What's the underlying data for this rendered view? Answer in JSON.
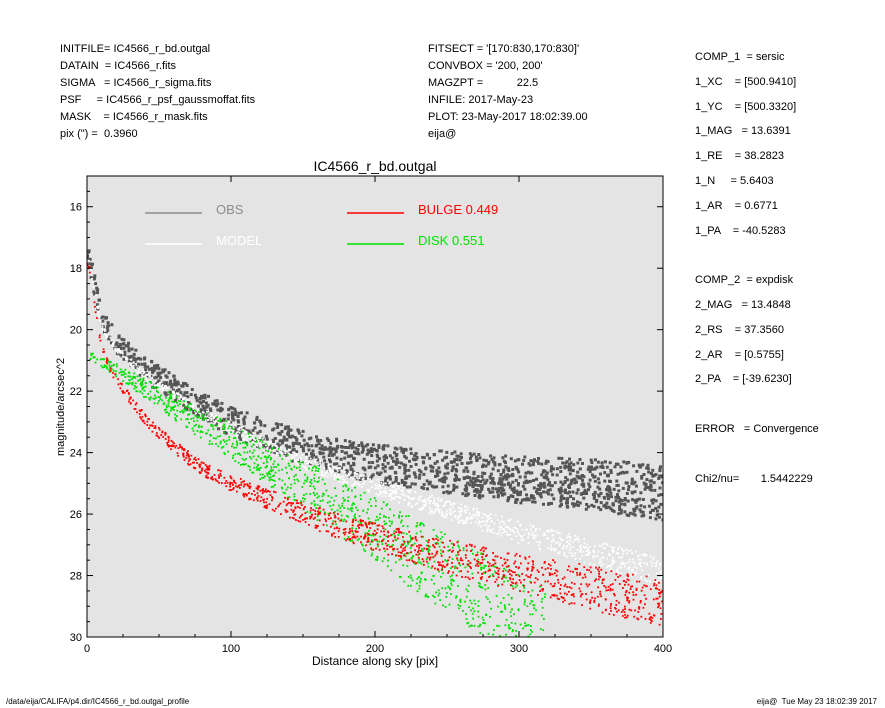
{
  "header_left": [
    "INITFILE= IC4566_r_bd.outgal",
    "DATAIN  = IC4566_r.fits",
    "SIGMA   = IC4566_r_sigma.fits",
    "PSF     = IC4566_r_psf_gaussmoffat.fits",
    "MASK    = IC4566_r_mask.fits",
    "pix (\") =  0.3960"
  ],
  "header_mid": [
    "FITSECT = '[170:830,170:830]'",
    "CONVBOX = '200, 200'",
    "MAGZPT =           22.5",
    "INFILE: 2017-May-23",
    "PLOT: 23-May-2017 18:02:39.00",
    "eija@"
  ],
  "header_right": [
    "COMP_1  = sersic",
    "1_XC    = [500.9410]",
    "1_YC    = [500.3320]",
    "1_MAG   = 13.6391",
    "1_RE    = 38.2823",
    "1_N     = 5.6403",
    "1_AR    = 0.6771",
    "1_PA    = -40.5283",
    "",
    "COMP_2  = expdisk",
    "2_MAG   = 13.4848",
    "2_RS    = 37.3560",
    "2_AR    = [0.5755]",
    "2_PA    = [-39.6230]",
    "",
    "ERROR   = Convergence",
    "",
    "Chi2/nu=       1.5442229"
  ],
  "footer_left": "/data/eija/CALIFA/p4.dir/IC4566_r_bd.outgal_profile",
  "footer_right": "eija@  Tue May 23 18:02:39 2017",
  "chart_data": {
    "type": "scatter",
    "title": "IC4566_r_bd.outgal",
    "xlabel": "Distance along sky [pix]",
    "ylabel": "magnitude/arcsec^2",
    "xlim": [
      0,
      400
    ],
    "ylim": [
      30,
      15
    ],
    "xticks": [
      0,
      100,
      200,
      300,
      400
    ],
    "yticks": [
      16,
      18,
      20,
      22,
      24,
      26,
      28,
      30
    ],
    "background": "#e4e4e4",
    "legend": [
      {
        "label": "OBS",
        "color": "#8c8c8c"
      },
      {
        "label": "MODEL",
        "color": "#ffffff"
      },
      {
        "label": "BULGE  0.449",
        "color": "#ff0000"
      },
      {
        "label": "DISK  0.551",
        "color": "#00e000"
      }
    ],
    "series": [
      {
        "name": "OBS",
        "color": "#555555",
        "x": [
          1,
          10,
          20,
          40,
          60,
          80,
          100,
          140,
          180,
          220,
          260,
          300,
          340,
          400
        ],
        "y": [
          17.6,
          19.6,
          20.4,
          21.3,
          21.9,
          22.5,
          23.0,
          23.7,
          24.2,
          24.5,
          24.7,
          24.9,
          25.0,
          25.3
        ]
      },
      {
        "name": "MODEL",
        "color": "#ffffff",
        "x": [
          1,
          10,
          20,
          40,
          60,
          80,
          100,
          140,
          180,
          220,
          260,
          300,
          340,
          400
        ],
        "y": [
          17.7,
          19.9,
          20.6,
          21.5,
          22.1,
          22.7,
          23.2,
          24.1,
          24.8,
          25.4,
          26.0,
          26.6,
          27.1,
          27.9
        ]
      },
      {
        "name": "BULGE  0.449",
        "color": "#ff0000",
        "x": [
          1,
          10,
          20,
          40,
          60,
          80,
          100,
          140,
          180,
          220,
          260,
          300,
          340,
          400
        ],
        "y": [
          17.8,
          20.6,
          21.6,
          22.9,
          23.8,
          24.5,
          25.0,
          25.8,
          26.5,
          27.0,
          27.5,
          27.9,
          28.3,
          28.9
        ]
      },
      {
        "name": "DISK  0.551",
        "color": "#00e000",
        "x": [
          0,
          20,
          40,
          60,
          80,
          100,
          140,
          180,
          220,
          260,
          300,
          320
        ],
        "y": [
          20.8,
          21.3,
          21.9,
          22.5,
          23.1,
          23.6,
          24.8,
          25.9,
          27.1,
          28.2,
          29.4,
          30.0
        ]
      }
    ]
  }
}
